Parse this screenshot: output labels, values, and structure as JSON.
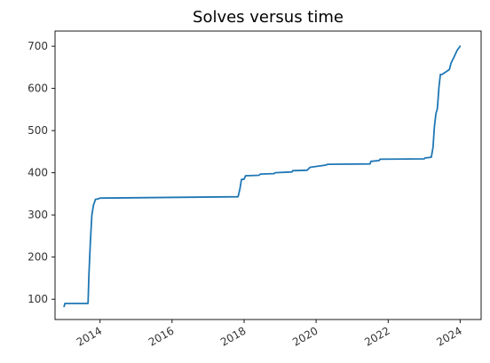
{
  "chart_data": {
    "type": "line",
    "title": "Solves versus time",
    "xlabel": "",
    "ylabel": "",
    "x_type": "date",
    "xlim": [
      "2012-10-01",
      "2024-08-01"
    ],
    "ylim": [
      52,
      736
    ],
    "x_ticks": [
      "2014",
      "2016",
      "2018",
      "2020",
      "2022",
      "2024"
    ],
    "y_ticks": [
      100,
      200,
      300,
      400,
      500,
      600,
      700
    ],
    "grid": false,
    "line_color": "#1f77b4",
    "series": [
      {
        "x": [
          "2013-01-01",
          "2013-01-10",
          "2013-09-01",
          "2013-09-10",
          "2013-09-25",
          "2013-10-10",
          "2013-10-25",
          "2013-11-15",
          "2013-12-10",
          "2014-01-01",
          "2017-11-01",
          "2017-11-20",
          "2017-12-05",
          "2018-01-01",
          "2018-01-15",
          "2018-06-01",
          "2018-06-15",
          "2018-11-01",
          "2018-11-10",
          "2019-05-01",
          "2019-05-10",
          "2019-10-01",
          "2019-11-01",
          "2020-04-01",
          "2020-05-01",
          "2021-07-01",
          "2021-07-10",
          "2021-10-01",
          "2021-10-10",
          "2023-01-01",
          "2023-01-10",
          "2023-03-15",
          "2023-04-01",
          "2023-04-15",
          "2023-05-01",
          "2023-05-15",
          "2023-06-01",
          "2023-06-15",
          "2023-07-01",
          "2023-08-01",
          "2023-09-15",
          "2023-10-01",
          "2023-11-01",
          "2023-12-01",
          "2024-01-01"
        ],
        "y": [
          83,
          90,
          90,
          160,
          240,
          300,
          322,
          337,
          338,
          340,
          343,
          362,
          384,
          385,
          393,
          394,
          397,
          398,
          400,
          402,
          405,
          406,
          413,
          418,
          420,
          421,
          427,
          429,
          432,
          433,
          435,
          437,
          460,
          510,
          540,
          552,
          605,
          633,
          633,
          638,
          645,
          660,
          675,
          690,
          700
        ]
      }
    ]
  }
}
